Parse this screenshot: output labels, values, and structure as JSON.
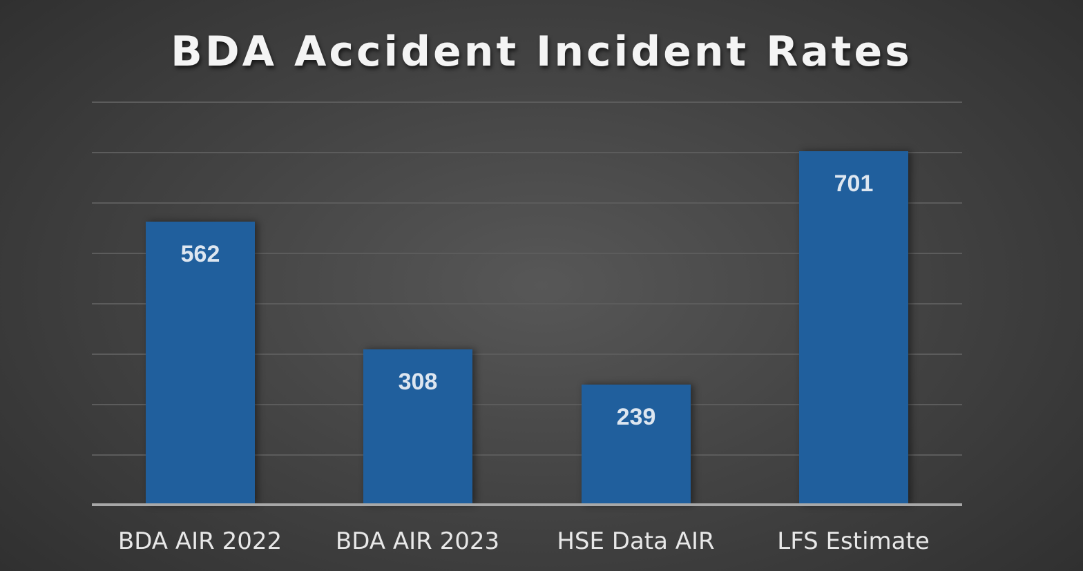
{
  "chart_data": {
    "type": "bar",
    "title": "BDA Accident Incident Rates",
    "categories": [
      "BDA AIR 2022",
      "BDA AIR 2023",
      "HSE Data AIR",
      "LFS Estimate"
    ],
    "values": [
      562,
      308,
      239,
      701
    ],
    "xlabel": "",
    "ylabel": "",
    "ylim": [
      0,
      800
    ],
    "grid": true,
    "gridline_step": 100,
    "data_labels": true,
    "legend": "none",
    "bar_color": "#205f9d"
  },
  "labels": {
    "v0": "562",
    "v1": "308",
    "v2": "239",
    "v3": "701"
  }
}
